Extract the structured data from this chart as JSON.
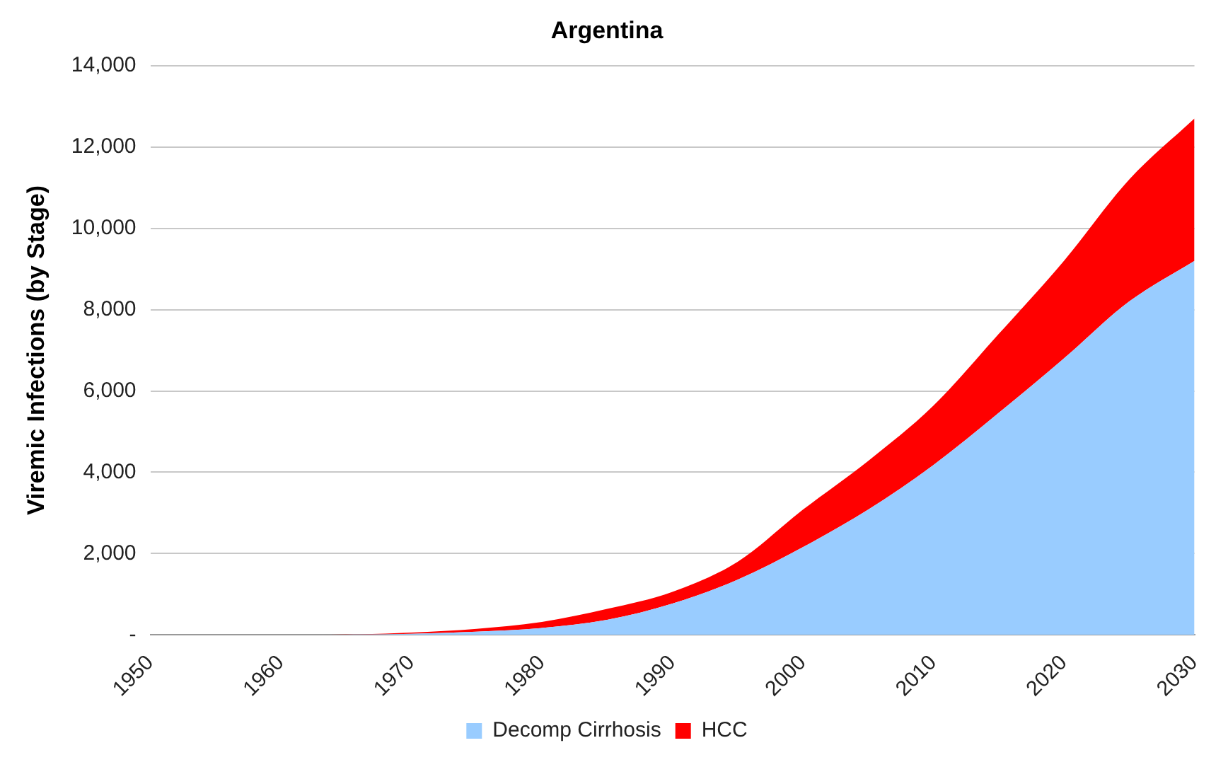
{
  "chart_data": {
    "type": "area",
    "title": "Argentina",
    "ylabel": "Viremic Infections (by Stage)",
    "stacked": true,
    "x": [
      1950,
      1955,
      1960,
      1965,
      1970,
      1975,
      1980,
      1985,
      1990,
      1995,
      2000,
      2005,
      2010,
      2015,
      2020,
      2025,
      2030
    ],
    "series": [
      {
        "name": "Decomp Cirrhosis",
        "color": "#99ccff",
        "values": [
          0,
          0,
          0,
          5,
          30,
          80,
          170,
          370,
          770,
          1360,
          2160,
          3080,
          4180,
          5460,
          6800,
          8200,
          9200
        ]
      },
      {
        "name": "HCC",
        "color": "#ff0000",
        "values": [
          0,
          0,
          0,
          5,
          30,
          70,
          150,
          270,
          290,
          440,
          920,
          1200,
          1460,
          1940,
          2400,
          3000,
          3500
        ]
      }
    ],
    "xlim": [
      1950,
      2030
    ],
    "xticks": [
      1950,
      1960,
      1970,
      1980,
      1990,
      2000,
      2010,
      2020,
      2030
    ],
    "ylim": [
      0,
      14000
    ],
    "yticks": [
      {
        "value": 0,
        "label": "-"
      },
      {
        "value": 2000,
        "label": "2,000"
      },
      {
        "value": 4000,
        "label": "4,000"
      },
      {
        "value": 6000,
        "label": "6,000"
      },
      {
        "value": 8000,
        "label": "8,000"
      },
      {
        "value": 10000,
        "label": "10,000"
      },
      {
        "value": 12000,
        "label": "12,000"
      },
      {
        "value": 14000,
        "label": "14,000"
      }
    ],
    "grid": "y",
    "legend": "bottom"
  }
}
